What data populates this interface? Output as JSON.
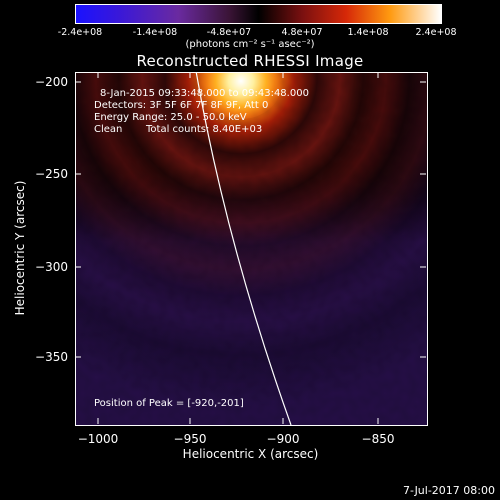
{
  "colorbar": {
    "ticks": [
      "-2.4e+08",
      "-1.4e+08",
      "-4.8e+07",
      "4.8e+07",
      "1.4e+08",
      "2.4e+08"
    ],
    "units": "(photons cm⁻² s⁻¹ asec⁻²)"
  },
  "image": {
    "title": "Reconstructed RHESSI Image",
    "time_range": "8-Jan-2015 09:33:48.000 to 09:43:48.000",
    "detectors": "Detectors: 3F 5F 6F 7F 8F 9F, Att 0",
    "energy_range": "Energy Range: 25.0 - 50.0 keV",
    "algorithm": "Clean",
    "total_counts": "Total counts: 8.40E+03",
    "peak_position": "Position of Peak = [-920,-201]"
  },
  "axes": {
    "xlabel": "Heliocentric X (arcsec)",
    "ylabel": "Heliocentric Y (arcsec)",
    "xticks": [
      "−1000",
      "−950",
      "−900",
      "−850"
    ],
    "yticks": [
      "−200",
      "−250",
      "−300",
      "−350"
    ]
  },
  "footer": {
    "date": "7-Jul-2017 08:00"
  },
  "colors": {
    "background": "#000000",
    "text": "#ffffff"
  }
}
